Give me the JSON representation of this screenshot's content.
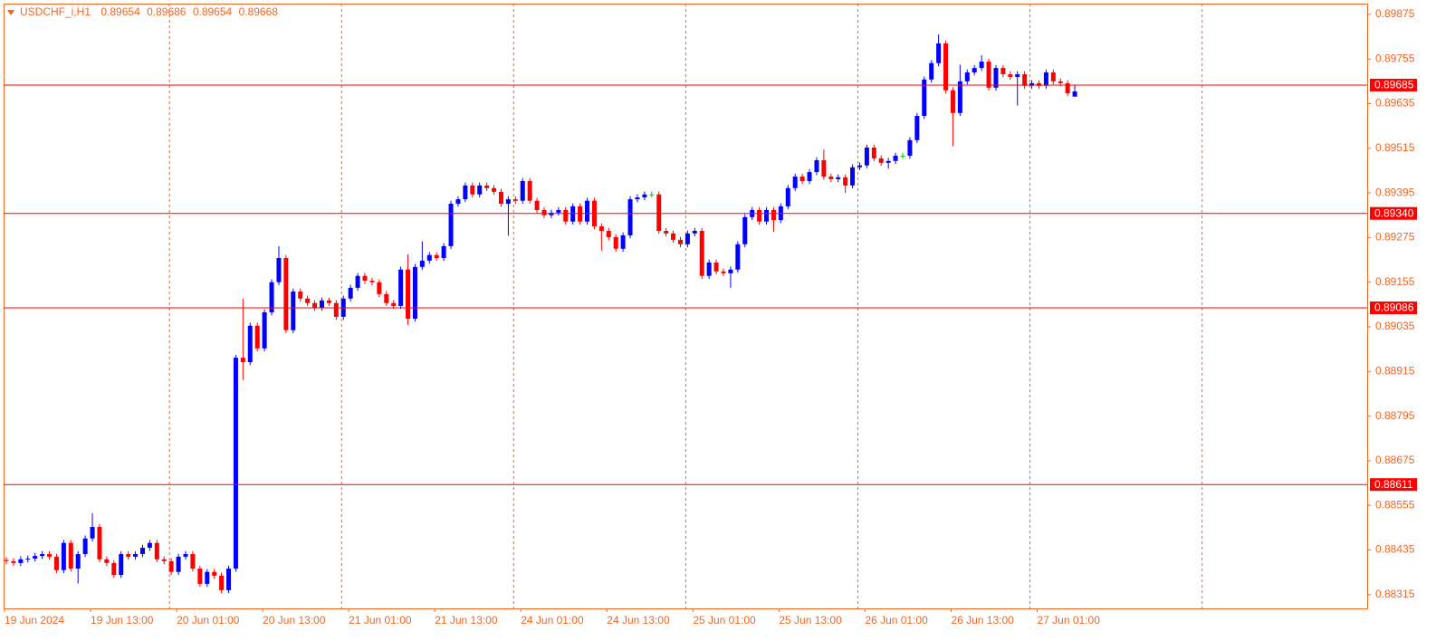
{
  "chart_data": {
    "type": "candlestick",
    "title": "USDCHF_i,H1",
    "up_color": "#0000ff",
    "down_color": "#ff0000",
    "doji_color": "#00c800",
    "level_color": "#ff0000",
    "axis_color": "#f26522",
    "ylim": [
      0.88278,
      0.89904
    ],
    "yticks": [
      0.89875,
      0.89755,
      0.89635,
      0.89515,
      0.89395,
      0.89275,
      0.89155,
      0.89035,
      0.88915,
      0.88795,
      0.88675,
      0.88555,
      0.88435,
      0.88315
    ],
    "levels": [
      0.89685,
      {
        "value": 0.8934,
        "label": "0.89340"
      },
      0.89086,
      0.88611
    ],
    "x_labels": [
      "19 Jun 2024",
      "19 Jun 13:00",
      "20 Jun 01:00",
      "20 Jun 13:00",
      "21 Jun 01:00",
      "21 Jun 13:00",
      "24 Jun 01:00",
      "24 Jun 13:00",
      "25 Jun 01:00",
      "25 Jun 13:00",
      "26 Jun 01:00",
      "26 Jun 13:00",
      "27 Jun 01:00"
    ],
    "open": [
      0.88408,
      0.88405,
      0.884,
      0.8841,
      0.88412,
      0.88419,
      0.88424,
      0.88417,
      0.88381,
      0.88454,
      0.88385,
      0.88424,
      0.88466,
      0.88497,
      0.8841,
      0.884,
      0.88368,
      0.88424,
      0.88417,
      0.88424,
      0.88441,
      0.88454,
      0.8841,
      0.88405,
      0.88376,
      0.88417,
      0.88424,
      0.88385,
      0.88344,
      0.88376,
      0.88366,
      0.88327,
      0.88385,
      0.88952,
      0.8894,
      0.89038,
      0.88977,
      0.89074,
      0.89155,
      0.8922,
      0.89026,
      0.8913,
      0.89111,
      0.89099,
      0.89086,
      0.89106,
      0.89099,
      0.89062,
      0.89111,
      0.8914,
      0.89172,
      0.89159,
      0.89155,
      0.89123,
      0.89099,
      0.89091,
      0.89189,
      0.89057,
      0.89196,
      0.89213,
      0.89228,
      0.8922,
      0.89252,
      0.89366,
      0.89378,
      0.89415,
      0.89391,
      0.89415,
      0.89408,
      0.89398,
      0.89366,
      0.89378,
      0.89374,
      0.89427,
      0.89374,
      0.89349,
      0.89335,
      0.89342,
      0.89349,
      0.89318,
      0.89359,
      0.89318,
      0.89374,
      0.89305,
      0.89293,
      0.89276,
      0.89245,
      0.89281,
      0.89378,
      0.89383,
      0.89391,
      0.89391,
      0.89293,
      0.89286,
      0.89269,
      0.89257,
      0.89286,
      0.89293,
      0.89172,
      0.89208,
      0.89184,
      0.89179,
      0.89189,
      0.89257,
      0.8933,
      0.89349,
      0.89318,
      0.89349,
      0.89322,
      0.89359,
      0.89408,
      0.89439,
      0.89427,
      0.89451,
      0.89483,
      0.89439,
      0.89432,
      0.89437,
      0.89415,
      0.89464,
      0.89469,
      0.89517,
      0.89488,
      0.89476,
      0.89481,
      0.89495,
      0.89495,
      0.89537,
      0.89602,
      0.897,
      0.89744,
      0.89797,
      0.89671,
      0.8961,
      0.89695,
      0.89719,
      0.89731,
      0.89748,
      0.89678,
      0.89731,
      0.89714,
      0.89707,
      0.89714,
      0.89683,
      0.8969,
      0.89683,
      0.89719,
      0.89695,
      0.8969,
      0.89654
    ],
    "high": [
      0.88416,
      0.88413,
      0.88418,
      0.8842,
      0.88427,
      0.88432,
      0.88432,
      0.88425,
      0.88462,
      0.88462,
      0.88432,
      0.88474,
      0.88534,
      0.88505,
      0.88418,
      0.88408,
      0.88432,
      0.88432,
      0.88432,
      0.88449,
      0.88462,
      0.88462,
      0.88418,
      0.88413,
      0.88425,
      0.88432,
      0.88432,
      0.88393,
      0.88384,
      0.88384,
      0.88374,
      0.88393,
      0.8896,
      0.89111,
      0.89046,
      0.89046,
      0.89082,
      0.89163,
      0.89252,
      0.89228,
      0.89138,
      0.89138,
      0.89119,
      0.89107,
      0.89114,
      0.89114,
      0.89107,
      0.89119,
      0.89148,
      0.8918,
      0.8918,
      0.89167,
      0.89163,
      0.89131,
      0.89107,
      0.89197,
      0.8923,
      0.89204,
      0.89265,
      0.89236,
      0.89236,
      0.8926,
      0.89374,
      0.89386,
      0.89423,
      0.89423,
      0.89423,
      0.89423,
      0.89416,
      0.89406,
      0.89386,
      0.89386,
      0.89435,
      0.89435,
      0.89382,
      0.89357,
      0.8935,
      0.89357,
      0.89357,
      0.89367,
      0.89367,
      0.89382,
      0.89382,
      0.89313,
      0.89301,
      0.89284,
      0.89289,
      0.89386,
      0.89391,
      0.89399,
      0.89399,
      0.89399,
      0.89301,
      0.89294,
      0.89277,
      0.89294,
      0.89301,
      0.89301,
      0.89216,
      0.89216,
      0.89192,
      0.89197,
      0.89265,
      0.89338,
      0.89357,
      0.89357,
      0.89357,
      0.89357,
      0.89367,
      0.89416,
      0.89447,
      0.89447,
      0.89459,
      0.89491,
      0.89512,
      0.89447,
      0.89445,
      0.89445,
      0.89472,
      0.89477,
      0.89525,
      0.89525,
      0.89496,
      0.89489,
      0.89503,
      0.89503,
      0.89545,
      0.8961,
      0.89708,
      0.89752,
      0.89821,
      0.89805,
      0.89679,
      0.8974,
      0.89727,
      0.89739,
      0.89765,
      0.89756,
      0.89739,
      0.89739,
      0.89722,
      0.89722,
      0.89722,
      0.89698,
      0.89698,
      0.89727,
      0.89727,
      0.89703,
      0.89698,
      0.89686
    ],
    "low": [
      0.88397,
      0.88392,
      0.88392,
      0.88402,
      0.88404,
      0.88411,
      0.88409,
      0.88373,
      0.88373,
      0.88377,
      0.88345,
      0.88416,
      0.88458,
      0.88402,
      0.88392,
      0.8836,
      0.8836,
      0.88409,
      0.88409,
      0.88416,
      0.88433,
      0.88402,
      0.88397,
      0.88368,
      0.88368,
      0.88409,
      0.88377,
      0.88336,
      0.88336,
      0.88358,
      0.88319,
      0.88319,
      0.88377,
      0.88892,
      0.88932,
      0.88969,
      0.88969,
      0.89066,
      0.89147,
      0.89018,
      0.89018,
      0.89103,
      0.89091,
      0.89078,
      0.89078,
      0.89091,
      0.89054,
      0.89054,
      0.89103,
      0.89132,
      0.89151,
      0.89147,
      0.89115,
      0.89091,
      0.89083,
      0.89083,
      0.8904,
      0.89049,
      0.89188,
      0.89205,
      0.89212,
      0.89212,
      0.89244,
      0.89358,
      0.8937,
      0.89383,
      0.89383,
      0.894,
      0.8939,
      0.89358,
      0.8928,
      0.89366,
      0.89366,
      0.89366,
      0.89341,
      0.89327,
      0.89327,
      0.89334,
      0.8931,
      0.8931,
      0.8931,
      0.8931,
      0.89297,
      0.8924,
      0.89268,
      0.89237,
      0.89237,
      0.89273,
      0.8937,
      0.89375,
      0.89383,
      0.89285,
      0.89278,
      0.89261,
      0.89249,
      0.89249,
      0.89278,
      0.89164,
      0.89164,
      0.89176,
      0.89171,
      0.8914,
      0.89181,
      0.89249,
      0.89322,
      0.8931,
      0.8931,
      0.8929,
      0.89314,
      0.89351,
      0.894,
      0.89419,
      0.89419,
      0.89443,
      0.89431,
      0.89424,
      0.89424,
      0.89395,
      0.89407,
      0.89456,
      0.89461,
      0.8948,
      0.89468,
      0.8946,
      0.89473,
      0.89487,
      0.89487,
      0.89529,
      0.89594,
      0.89692,
      0.89736,
      0.89663,
      0.8952,
      0.89602,
      0.89687,
      0.89711,
      0.89723,
      0.8967,
      0.8967,
      0.89706,
      0.89699,
      0.8963,
      0.89675,
      0.89675,
      0.89675,
      0.89675,
      0.89687,
      0.89682,
      0.89655,
      0.89654
    ],
    "close": [
      0.88405,
      0.884,
      0.8841,
      0.88412,
      0.88419,
      0.88424,
      0.88417,
      0.88381,
      0.88454,
      0.88385,
      0.88424,
      0.88466,
      0.88497,
      0.8841,
      0.884,
      0.88368,
      0.88424,
      0.88417,
      0.88424,
      0.88441,
      0.88454,
      0.8841,
      0.88405,
      0.88376,
      0.88417,
      0.88424,
      0.88385,
      0.88344,
      0.88376,
      0.88366,
      0.88327,
      0.88385,
      0.88952,
      0.8894,
      0.89038,
      0.88977,
      0.89074,
      0.89155,
      0.8922,
      0.89026,
      0.8913,
      0.89111,
      0.89099,
      0.89086,
      0.89106,
      0.89099,
      0.89062,
      0.89111,
      0.8914,
      0.89172,
      0.89159,
      0.89155,
      0.89123,
      0.89099,
      0.89091,
      0.89189,
      0.89057,
      0.89196,
      0.89213,
      0.89228,
      0.8922,
      0.89252,
      0.89366,
      0.89378,
      0.89415,
      0.89391,
      0.89415,
      0.89408,
      0.89398,
      0.89366,
      0.89378,
      0.89374,
      0.89427,
      0.89374,
      0.89349,
      0.89335,
      0.89342,
      0.89349,
      0.89318,
      0.89359,
      0.89318,
      0.89374,
      0.89305,
      0.89293,
      0.89276,
      0.89245,
      0.89281,
      0.89378,
      0.89383,
      0.89391,
      0.89391,
      0.89293,
      0.89286,
      0.89269,
      0.89257,
      0.89286,
      0.89293,
      0.89172,
      0.89208,
      0.89184,
      0.89179,
      0.89189,
      0.89257,
      0.8933,
      0.89349,
      0.89318,
      0.89349,
      0.89322,
      0.89359,
      0.89408,
      0.89439,
      0.89427,
      0.89451,
      0.89483,
      0.89439,
      0.89432,
      0.89437,
      0.89415,
      0.89464,
      0.89469,
      0.89517,
      0.89488,
      0.89476,
      0.89481,
      0.89495,
      0.89495,
      0.89537,
      0.89602,
      0.897,
      0.89744,
      0.89797,
      0.89671,
      0.8961,
      0.89695,
      0.89719,
      0.89731,
      0.89748,
      0.89678,
      0.89731,
      0.89714,
      0.89707,
      0.89714,
      0.89683,
      0.8969,
      0.89683,
      0.89719,
      0.89695,
      0.8969,
      0.89663,
      0.89668
    ]
  }
}
